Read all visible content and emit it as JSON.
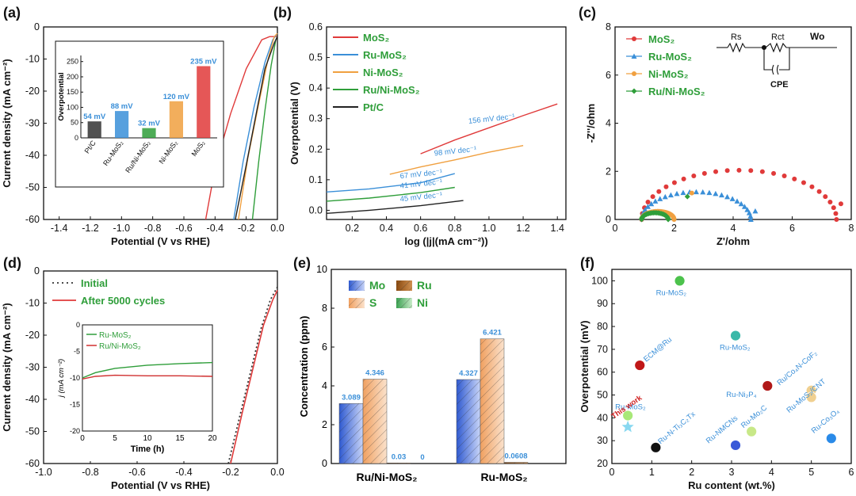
{
  "chart_data": [
    {
      "panel": "(a)",
      "type": "line",
      "xlabel": "Potential (V vs RHE)",
      "ylabel": "Current density (mA cm⁻²)",
      "xlim": [
        -1.5,
        0.0
      ],
      "ylim": [
        -60,
        0
      ],
      "xticks": [
        "-1.4",
        "-1.2",
        "-1.0",
        "-0.8",
        "-0.6",
        "-0.4",
        "-0.2",
        "0.0"
      ],
      "yticks": [
        "0",
        "-10",
        "-20",
        "-30",
        "-40",
        "-50",
        "-60"
      ],
      "series": [
        {
          "name": "MoS₂",
          "color": "#e03a3a",
          "x": [
            -0.46,
            -0.4,
            -0.3,
            -0.2,
            -0.1,
            -0.05,
            0.0
          ],
          "y": [
            -60,
            -44,
            -27,
            -13,
            -4,
            -3,
            -3
          ]
        },
        {
          "name": "Ru-MoS₂",
          "color": "#3a8fd8",
          "x": [
            -0.28,
            -0.22,
            -0.15,
            -0.08,
            -0.03,
            0.0
          ],
          "y": [
            -60,
            -42,
            -25,
            -11,
            -4,
            -2
          ]
        },
        {
          "name": "Ni-MoS₂",
          "color": "#f0a040",
          "x": [
            -0.25,
            -0.19,
            -0.12,
            -0.06,
            -0.02,
            0.0
          ],
          "y": [
            -60,
            -41,
            -24,
            -10,
            -3,
            -2
          ]
        },
        {
          "name": "Ru/Ni-MoS₂",
          "color": "#2f9e3a",
          "x": [
            -0.16,
            -0.12,
            -0.08,
            -0.04,
            -0.01,
            0.0
          ],
          "y": [
            -60,
            -42,
            -26,
            -12,
            -4,
            -3
          ]
        },
        {
          "name": "Pt/C",
          "color": "#222222",
          "x": [
            -0.27,
            -0.2,
            -0.14,
            -0.08,
            -0.02,
            0.0
          ],
          "y": [
            -60,
            -43,
            -28,
            -13,
            -5,
            -3
          ]
        }
      ],
      "inset": {
        "type": "bar",
        "ylabel": "Overpotential",
        "ylim": [
          0,
          270
        ],
        "yticks": [
          "0",
          "50",
          "100",
          "150",
          "200",
          "250"
        ],
        "categories": [
          "Pt/C",
          "Ru-MoS₂",
          "Ru/Ni-MoS₂",
          "Ni-MoS₂",
          "MoS₂"
        ],
        "values": [
          54,
          88,
          32,
          120,
          235
        ],
        "labels": [
          "54 mV",
          "88 mV",
          "32 mV",
          "120 mV",
          "235 mV"
        ],
        "colors": [
          "#333333",
          "#3a8fd8",
          "#2f9e3a",
          "#f0a040",
          "#e03a3a"
        ]
      }
    },
    {
      "panel": "(b)",
      "type": "line",
      "xlabel": "log (|j|(mA cm⁻²))",
      "ylabel": "Overpotential (V)",
      "xlim": [
        0.05,
        1.45
      ],
      "ylim": [
        -0.03,
        0.6
      ],
      "xticks": [
        "0.2",
        "0.4",
        "0.6",
        "0.8",
        "1.0",
        "1.2",
        "1.4"
      ],
      "yticks": [
        "0.0",
        "0.1",
        "0.2",
        "0.3",
        "0.4",
        "0.5",
        "0.6"
      ],
      "legend": [
        "MoS₂",
        "Ru-MoS₂",
        "Ni-MoS₂",
        "Ru/Ni-MoS₂",
        "Pt/C"
      ],
      "series": [
        {
          "name": "MoS₂",
          "color": "#e03a3a",
          "x": [
            0.6,
            0.8,
            1.0,
            1.2,
            1.4
          ],
          "y": [
            0.185,
            0.23,
            0.27,
            0.31,
            0.348
          ],
          "label": "156 mV dec⁻¹"
        },
        {
          "name": "Ru-MoS₂",
          "color": "#3a8fd8",
          "x": [
            0.05,
            0.3,
            0.6,
            0.8
          ],
          "y": [
            0.06,
            0.07,
            0.09,
            0.12
          ],
          "label": "67 mV dec⁻¹"
        },
        {
          "name": "Ni-MoS₂",
          "color": "#f0a040",
          "x": [
            0.42,
            0.6,
            0.8,
            1.0,
            1.2
          ],
          "y": [
            0.118,
            0.142,
            0.165,
            0.19,
            0.212
          ],
          "label": "98 mV dec⁻¹"
        },
        {
          "name": "Ru/Ni-MoS₂",
          "color": "#2f9e3a",
          "x": [
            0.05,
            0.3,
            0.6,
            0.8
          ],
          "y": [
            0.03,
            0.04,
            0.058,
            0.075
          ],
          "label": "41 mV dec⁻¹"
        },
        {
          "name": "Pt/C",
          "color": "#222222",
          "x": [
            0.05,
            0.3,
            0.6,
            0.85
          ],
          "y": [
            -0.01,
            0.0,
            0.015,
            0.032
          ],
          "label": "45 mV dec⁻¹"
        }
      ]
    },
    {
      "panel": "(c)",
      "type": "scatter",
      "xlabel": "Z'/ohm",
      "ylabel": "-Z''/ohm",
      "xlim": [
        0,
        8
      ],
      "ylim": [
        0,
        8
      ],
      "xticks": [
        "0",
        "2",
        "4",
        "6",
        "8"
      ],
      "yticks": [
        "0",
        "2",
        "4",
        "6",
        "8"
      ],
      "legend": [
        "MoS₂",
        "Ru-MoS₂",
        "Ni-MoS₂",
        "Ru/Ni-MoS₂"
      ],
      "circuit_labels": [
        "Rs",
        "Rct",
        "Wo",
        "CPE"
      ],
      "series": [
        {
          "name": "MoS₂",
          "color": "#e03a3a",
          "marker": "circle",
          "center": 4.2,
          "radius": 3.3,
          "x_start": 0.9,
          "x_end": 7.5,
          "tail_end": [
            7.65,
            0.65
          ]
        },
        {
          "name": "Ru-MoS₂",
          "color": "#3a8fd8",
          "marker": "triangle",
          "center": 2.75,
          "radius": 1.85,
          "x_start": 0.9,
          "x_end": 4.6,
          "tail_end": [
            4.75,
            0.35
          ]
        },
        {
          "name": "Ni-MoS₂",
          "color": "#f0a040",
          "marker": "circle",
          "center": 1.45,
          "radius": 0.55,
          "x_start": 0.9,
          "x_end": 2.0,
          "tail_end": [
            2.6,
            1.1
          ]
        },
        {
          "name": "Ru/Ni-MoS₂",
          "color": "#2f9e3a",
          "marker": "diamond",
          "center": 1.35,
          "radius": 0.45,
          "x_start": 0.9,
          "x_end": 1.8,
          "tail_end": [
            2.45,
            0.95
          ]
        }
      ]
    },
    {
      "panel": "(d)",
      "type": "line",
      "xlabel": "Potential (V vs RHE)",
      "ylabel": "Current density (mA cm⁻²)",
      "xlim": [
        -1.0,
        0.0
      ],
      "ylim": [
        -60,
        0
      ],
      "xticks": [
        "-1.0",
        "-0.8",
        "-0.6",
        "-0.4",
        "-0.2",
        "0.0"
      ],
      "yticks": [
        "0",
        "-10",
        "-20",
        "-30",
        "-40",
        "-50",
        "-60"
      ],
      "series": [
        {
          "name": "Initial",
          "color": "#333333",
          "style": "dotted",
          "x": [
            -0.21,
            -0.16,
            -0.11,
            -0.07,
            -0.03,
            0.0
          ],
          "y": [
            -60,
            -45,
            -30,
            -18,
            -9,
            -5
          ]
        },
        {
          "name": "After 5000 cycles",
          "color": "#e03a3a",
          "style": "solid",
          "x": [
            -0.2,
            -0.15,
            -0.1,
            -0.06,
            -0.02,
            0.0
          ],
          "y": [
            -60,
            -44,
            -29,
            -17,
            -9,
            -6
          ]
        }
      ],
      "inset": {
        "type": "line",
        "xlabel": "Time (h)",
        "ylabel": "j (mA cm⁻²)",
        "xlim": [
          0,
          20
        ],
        "ylim": [
          -20,
          0
        ],
        "xticks": [
          "0",
          "5",
          "10",
          "15",
          "20"
        ],
        "yticks": [
          "0",
          "-5",
          "-10",
          "-15",
          "-20"
        ],
        "series": [
          {
            "name": "Ru-MoS₂",
            "color": "#2f9e3a",
            "x": [
              0,
              2,
              5,
              10,
              15,
              20
            ],
            "y": [
              -10,
              -9,
              -8.2,
              -7.6,
              -7.3,
              -7.1
            ]
          },
          {
            "name": "Ru/Ni-MoS₂",
            "color": "#d03030",
            "x": [
              0,
              2,
              5,
              10,
              15,
              20
            ],
            "y": [
              -10.2,
              -9.7,
              -9.5,
              -9.6,
              -9.6,
              -9.7
            ]
          }
        ]
      }
    },
    {
      "panel": "(e)",
      "type": "bar",
      "ylabel": "Concentration (ppm)",
      "ylim": [
        0,
        10
      ],
      "yticks": [
        "0",
        "2",
        "4",
        "6",
        "8",
        "10"
      ],
      "categories": [
        "Ru/Ni-MoS₂",
        "Ru-MoS₂"
      ],
      "series": [
        {
          "name": "Mo",
          "color": "#5a78d8",
          "values": [
            3.089,
            4.327
          ],
          "labels": [
            "3.089",
            "4.327"
          ]
        },
        {
          "name": "S",
          "color": "#f0a060",
          "values": [
            4.346,
            6.421
          ],
          "labels": [
            "4.346",
            "6.421"
          ]
        },
        {
          "name": "Ru",
          "color": "#9a5a1e",
          "values": [
            0.03,
            0.0608
          ],
          "labels": [
            "0.03",
            "0.0608"
          ]
        },
        {
          "name": "Ni",
          "color": "#3aa050",
          "values": [
            0,
            0
          ],
          "labels": [
            "0",
            ""
          ]
        }
      ]
    },
    {
      "panel": "(f)",
      "type": "scatter",
      "xlabel": "Ru content (wt.%)",
      "ylabel": "Overpotential (mV)",
      "xlim": [
        0,
        6
      ],
      "ylim": [
        20,
        105
      ],
      "xticks": [
        "0",
        "1",
        "2",
        "3",
        "4",
        "5",
        "6"
      ],
      "yticks": [
        "20",
        "30",
        "40",
        "50",
        "60",
        "70",
        "80",
        "90",
        "100"
      ],
      "points": [
        {
          "label": "Ru-MoS₂",
          "x": 1.7,
          "y": 100,
          "color": "#4cc24c"
        },
        {
          "label": "ECM@Ru",
          "x": 0.7,
          "y": 63,
          "color": "#c01818"
        },
        {
          "label": "Ru-MoS₂",
          "x": 3.1,
          "y": 76,
          "color": "#3ab8a8"
        },
        {
          "label": "Ru-Ni₂P₄",
          "x": 3.9,
          "y": 54,
          "color": "#b01818"
        },
        {
          "label": "Ru/Co₄N-CoF₂",
          "x": 5.0,
          "y": 52,
          "color": "#f0d090"
        },
        {
          "label": "Ru-MoS₂/CNT",
          "x": 5.0,
          "y": 49,
          "color": "#f0d090"
        },
        {
          "label": "Ru-MoS₂",
          "x": 0.4,
          "y": 41,
          "color": "#a8e878"
        },
        {
          "label": "This work",
          "x": 0.4,
          "y": 36,
          "color": "#88d8f0",
          "marker": "star"
        },
        {
          "label": "Ru-N-Ti₃C₂Tx",
          "x": 1.1,
          "y": 27,
          "color": "#111111"
        },
        {
          "label": "Ru-NMCNs",
          "x": 3.1,
          "y": 28,
          "color": "#3a5ad8"
        },
        {
          "label": "Ru-Mo₂C",
          "x": 3.5,
          "y": 34,
          "color": "#c8e888"
        },
        {
          "label": "Ru-Co₃O₄",
          "x": 5.5,
          "y": 31,
          "color": "#2a8ae8"
        }
      ]
    }
  ]
}
